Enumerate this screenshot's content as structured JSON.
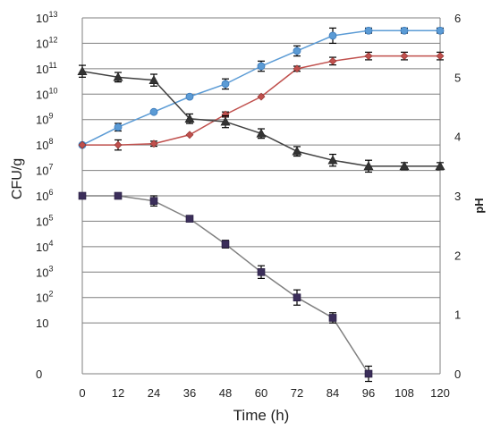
{
  "chart_data": {
    "type": "line",
    "xlabel": "Time (h)",
    "ylabel_left": "CFU/g",
    "ylabel_right": "pH",
    "x": [
      0,
      12,
      24,
      36,
      48,
      60,
      72,
      84,
      96,
      108,
      120
    ],
    "x_ticks": [
      "0",
      "12",
      "24",
      "36",
      "48",
      "60",
      "72",
      "84",
      "96",
      "108",
      "120"
    ],
    "left_axis": {
      "scale": "log10",
      "ylim": [
        -1,
        13
      ],
      "note": "lowest tick '0' represents zero count",
      "ticks": [
        {
          "label": "0",
          "exp": -1
        },
        {
          "label": "10",
          "exp": 1
        },
        {
          "label": "10",
          "sup": "2",
          "exp": 2
        },
        {
          "label": "10",
          "sup": "3",
          "exp": 3
        },
        {
          "label": "10",
          "sup": "4",
          "exp": 4
        },
        {
          "label": "10",
          "sup": "5",
          "exp": 5
        },
        {
          "label": "10",
          "sup": "6",
          "exp": 6
        },
        {
          "label": "10",
          "sup": "7",
          "exp": 7
        },
        {
          "label": "10",
          "sup": "8",
          "exp": 8
        },
        {
          "label": "10",
          "sup": "9",
          "exp": 9
        },
        {
          "label": "10",
          "sup": "10",
          "exp": 10
        },
        {
          "label": "10",
          "sup": "11",
          "exp": 11
        },
        {
          "label": "10",
          "sup": "12",
          "exp": 12
        },
        {
          "label": "10",
          "sup": "13",
          "exp": 13
        }
      ]
    },
    "right_axis": {
      "ylim": [
        0,
        6
      ],
      "ticks": [
        "0",
        "1",
        "2",
        "3",
        "4",
        "5",
        "6"
      ]
    },
    "grid": true,
    "series": [
      {
        "axis": "left",
        "marker": "circle",
        "color": "#5b9bd5",
        "line_color": "#5b9bd5",
        "x": [
          0,
          12,
          24,
          36,
          48,
          60,
          72,
          84,
          96,
          108,
          120
        ],
        "y_log10": [
          8.0,
          8.7,
          9.3,
          9.9,
          10.4,
          11.1,
          11.7,
          12.3,
          12.5,
          12.5,
          12.5
        ],
        "err": [
          0.0,
          0.15,
          0.0,
          0.0,
          0.2,
          0.2,
          0.2,
          0.3,
          0.1,
          0.1,
          0.1
        ]
      },
      {
        "axis": "left",
        "marker": "diamond",
        "color": "#c0504d",
        "line_color": "#c0504d",
        "x": [
          0,
          12,
          24,
          36,
          48,
          60,
          72,
          84,
          96,
          108,
          120
        ],
        "y_log10": [
          8.0,
          8.0,
          8.05,
          8.4,
          9.2,
          9.9,
          11.0,
          11.3,
          11.5,
          11.5,
          11.5
        ],
        "err": [
          0.0,
          0.2,
          0.1,
          0.0,
          0.1,
          0.0,
          0.1,
          0.15,
          0.15,
          0.15,
          0.15
        ]
      },
      {
        "axis": "right",
        "marker": "triangle",
        "color": "#333333",
        "line_color": "#404040",
        "x": [
          0,
          12,
          24,
          36,
          48,
          60,
          72,
          84,
          96,
          108,
          120
        ],
        "y": [
          5.1,
          5.0,
          4.95,
          4.3,
          4.25,
          4.05,
          3.75,
          3.6,
          3.5,
          3.5,
          3.5
        ],
        "err": [
          0.1,
          0.08,
          0.1,
          0.08,
          0.1,
          0.08,
          0.08,
          0.1,
          0.1,
          0.06,
          0.06
        ]
      },
      {
        "axis": "left",
        "marker": "square",
        "color": "#3b2e5a",
        "line_color": "#808080",
        "x": [
          0,
          12,
          24,
          36,
          48,
          60,
          72,
          84,
          96
        ],
        "y_log10": [
          6.0,
          6.0,
          5.8,
          5.1,
          4.1,
          3.0,
          2.0,
          1.2,
          -1.0
        ],
        "err": [
          0.0,
          0.1,
          0.2,
          0.0,
          0.15,
          0.25,
          0.3,
          0.2,
          0.3
        ]
      }
    ]
  }
}
